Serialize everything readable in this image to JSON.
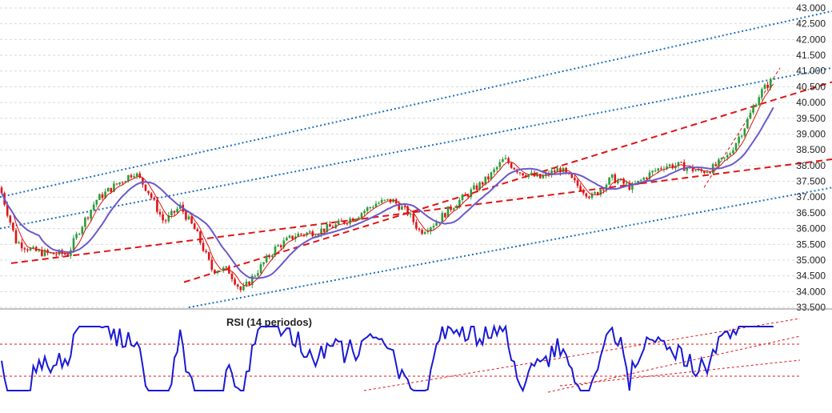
{
  "chart_data": [
    {
      "type": "candlestick",
      "y_ticks": [
        "43.000",
        "42.500",
        "42.000",
        "41.500",
        "41.000",
        "40.500",
        "40.000",
        "39.500",
        "39.000",
        "38.500",
        "38.000",
        "37.500",
        "37.000",
        "36.500",
        "36.000",
        "35.500",
        "35.000",
        "34.500",
        "34.000",
        "33.500"
      ],
      "ylim": [
        33500,
        43000
      ],
      "grid": true,
      "colors": {
        "up": "#2a9d3a",
        "down": "#e01414",
        "ma_fast": "#e01414",
        "ma_slow": "#6a5acd",
        "channel": "#e01414",
        "channel_outer": "#1e6fc4"
      }
    },
    {
      "type": "line",
      "title": "RSI (14 periodos)",
      "levels": [
        70,
        30
      ],
      "colors": {
        "rsi": "#1a1ad6",
        "levels": "#e01414"
      }
    }
  ]
}
